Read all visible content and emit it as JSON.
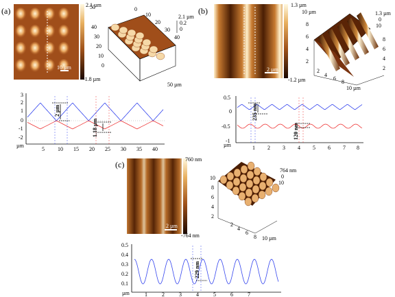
{
  "panels": [
    {
      "label": "(a)",
      "map2d": {
        "scale_max": "2.1 µm",
        "scale_min": "-1.8 µm",
        "scalebar": "10 µm"
      },
      "map3d": {
        "z_max": "2.1 µm",
        "z_mid": "0.2",
        "z_min": "0",
        "y_ticks": [
          "50",
          "40",
          "30",
          "20",
          "10",
          "0"
        ],
        "x_ticks": [
          "0",
          "10",
          "20",
          "30",
          "40",
          "50"
        ],
        "x_end": "50 µm"
      },
      "profile": {
        "y_ticks": [
          "3",
          "2",
          "1",
          "0",
          "-1",
          "-2"
        ],
        "x_ticks": [
          "5",
          "10",
          "15",
          "20",
          "25",
          "30",
          "35",
          "40"
        ],
        "x_unit": "µm",
        "annotations": [
          "2 µm",
          "1.18 µm"
        ]
      }
    },
    {
      "label": "(b)",
      "map2d": {
        "scale_max": "1.3 µm",
        "scale_min": "-1.2 µm",
        "scalebar": "2 µm"
      },
      "map3d": {
        "z_max": "1.3 µm",
        "z_mid": "0",
        "z_min": "10",
        "y_ticks": [
          "10 µm",
          "8",
          "6",
          "4",
          "2"
        ],
        "x_ticks": [
          "2",
          "4",
          "6",
          "8",
          "10"
        ],
        "x_end": "10 µm",
        "depth_ticks": [
          "8",
          "6",
          "4",
          "2"
        ]
      },
      "profile": {
        "y_ticks": [
          "0.5",
          "0",
          "-0.5",
          "-1"
        ],
        "x_ticks": [
          "1",
          "2",
          "3",
          "4",
          "5",
          "6",
          "7",
          "8"
        ],
        "x_unit": "µm",
        "annotations": [
          "235 nm",
          "120 nm"
        ]
      }
    },
    {
      "label": "(c)",
      "map2d": {
        "scale_max": "760 nm",
        "scale_min": "-764 nm",
        "scalebar": "2 µm"
      },
      "map3d": {
        "z_max": "764 nm",
        "z_mid": "0",
        "z_min": "10",
        "y_ticks": [
          "10",
          "8",
          "6",
          "4",
          "2"
        ],
        "x_ticks": [
          "2",
          "4",
          "6",
          "8",
          "10 µm"
        ]
      },
      "profile": {
        "y_ticks": [
          "0.5",
          "0.4",
          "0.3",
          "0.2",
          "0.1"
        ],
        "x_ticks": [
          "1",
          "2",
          "3",
          "4",
          "5",
          "6",
          "7"
        ],
        "x_unit": "µm",
        "annotations": [
          "229 nm"
        ]
      }
    }
  ]
}
